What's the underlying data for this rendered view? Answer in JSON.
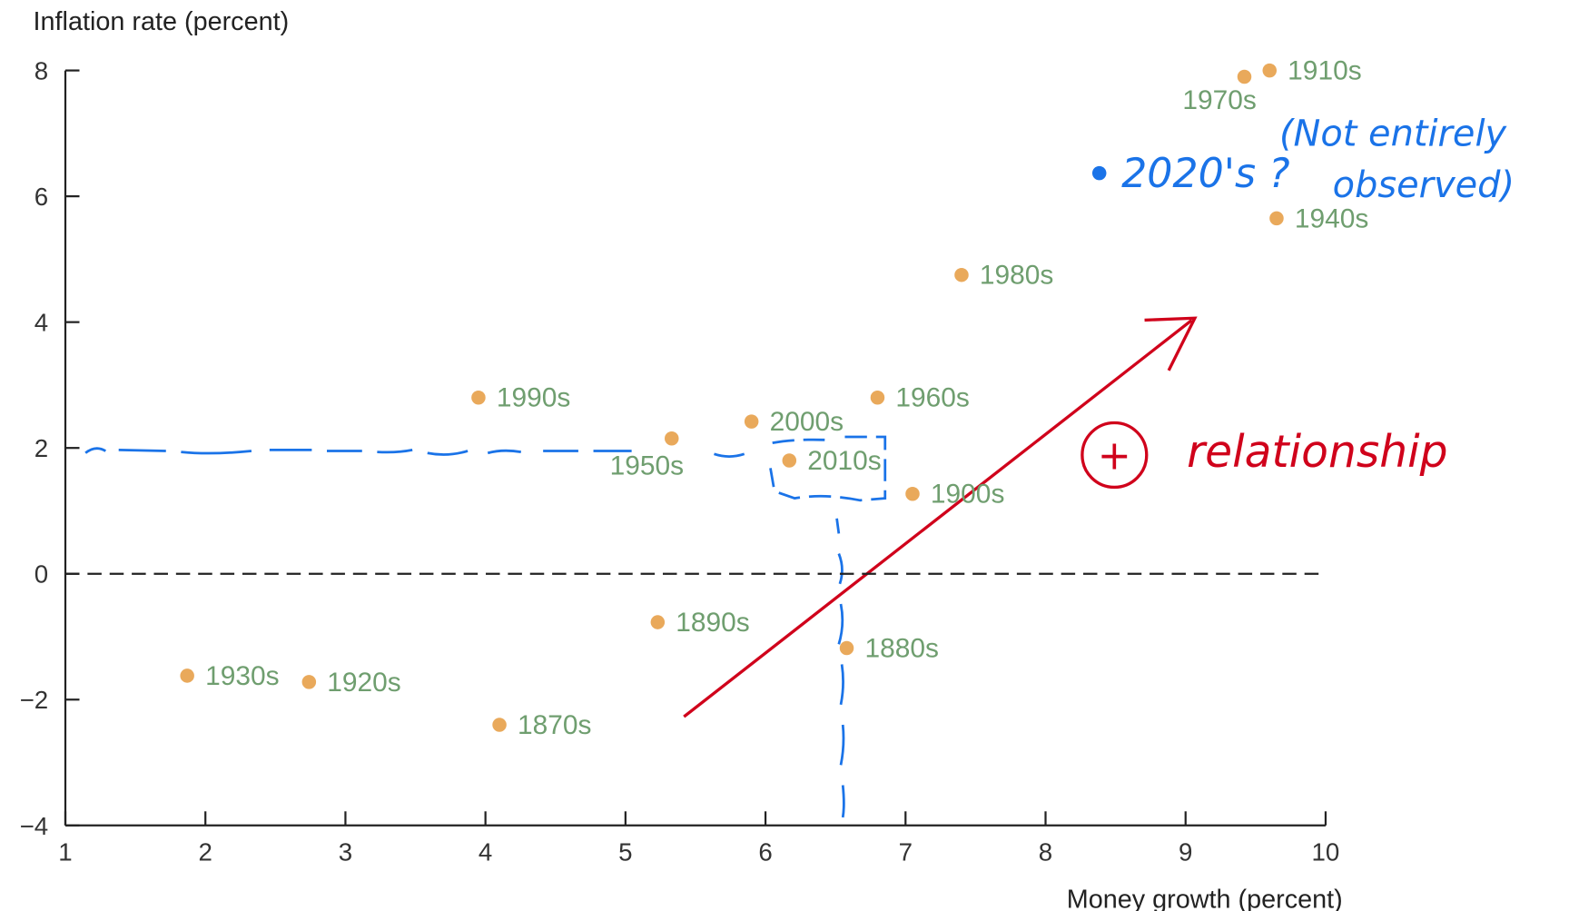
{
  "chart_data": {
    "type": "scatter",
    "y_label": "Inflation rate (percent)",
    "x_label": "Money growth (percent)",
    "series": [
      {
        "color": "#e9a95b",
        "label_color": "#6f9e6f",
        "labels": [
          "1910s",
          "1970s",
          "1940s",
          "1980s",
          "1990s",
          "1960s",
          "2000s",
          "1950s",
          "2010s",
          "1900s",
          "1890s",
          "1880s",
          "1930s",
          "1920s",
          "1870s"
        ],
        "x": [
          9.6,
          9.42,
          9.65,
          7.4,
          3.95,
          6.8,
          5.9,
          5.33,
          6.17,
          7.05,
          5.23,
          6.58,
          1.87,
          2.74,
          4.1
        ],
        "values": [
          8.0,
          7.9,
          5.65,
          4.75,
          2.8,
          2.8,
          2.42,
          2.15,
          1.8,
          1.27,
          -0.77,
          -1.18,
          -1.62,
          -1.72,
          -2.4
        ]
      }
    ],
    "xlim": [
      1,
      10
    ],
    "xticks": [
      1,
      2,
      3,
      4,
      5,
      6,
      7,
      8,
      9,
      10
    ],
    "ylim": [
      -4,
      8
    ],
    "yticks": [
      {
        "value": -4,
        "label": "−4"
      },
      {
        "value": -2,
        "label": "−2"
      },
      0,
      2,
      4,
      6,
      8
    ],
    "reference_line": 0,
    "annotations": [
      "2020's ?",
      "(Not entirely",
      "observed)",
      "+",
      "relationship"
    ]
  }
}
